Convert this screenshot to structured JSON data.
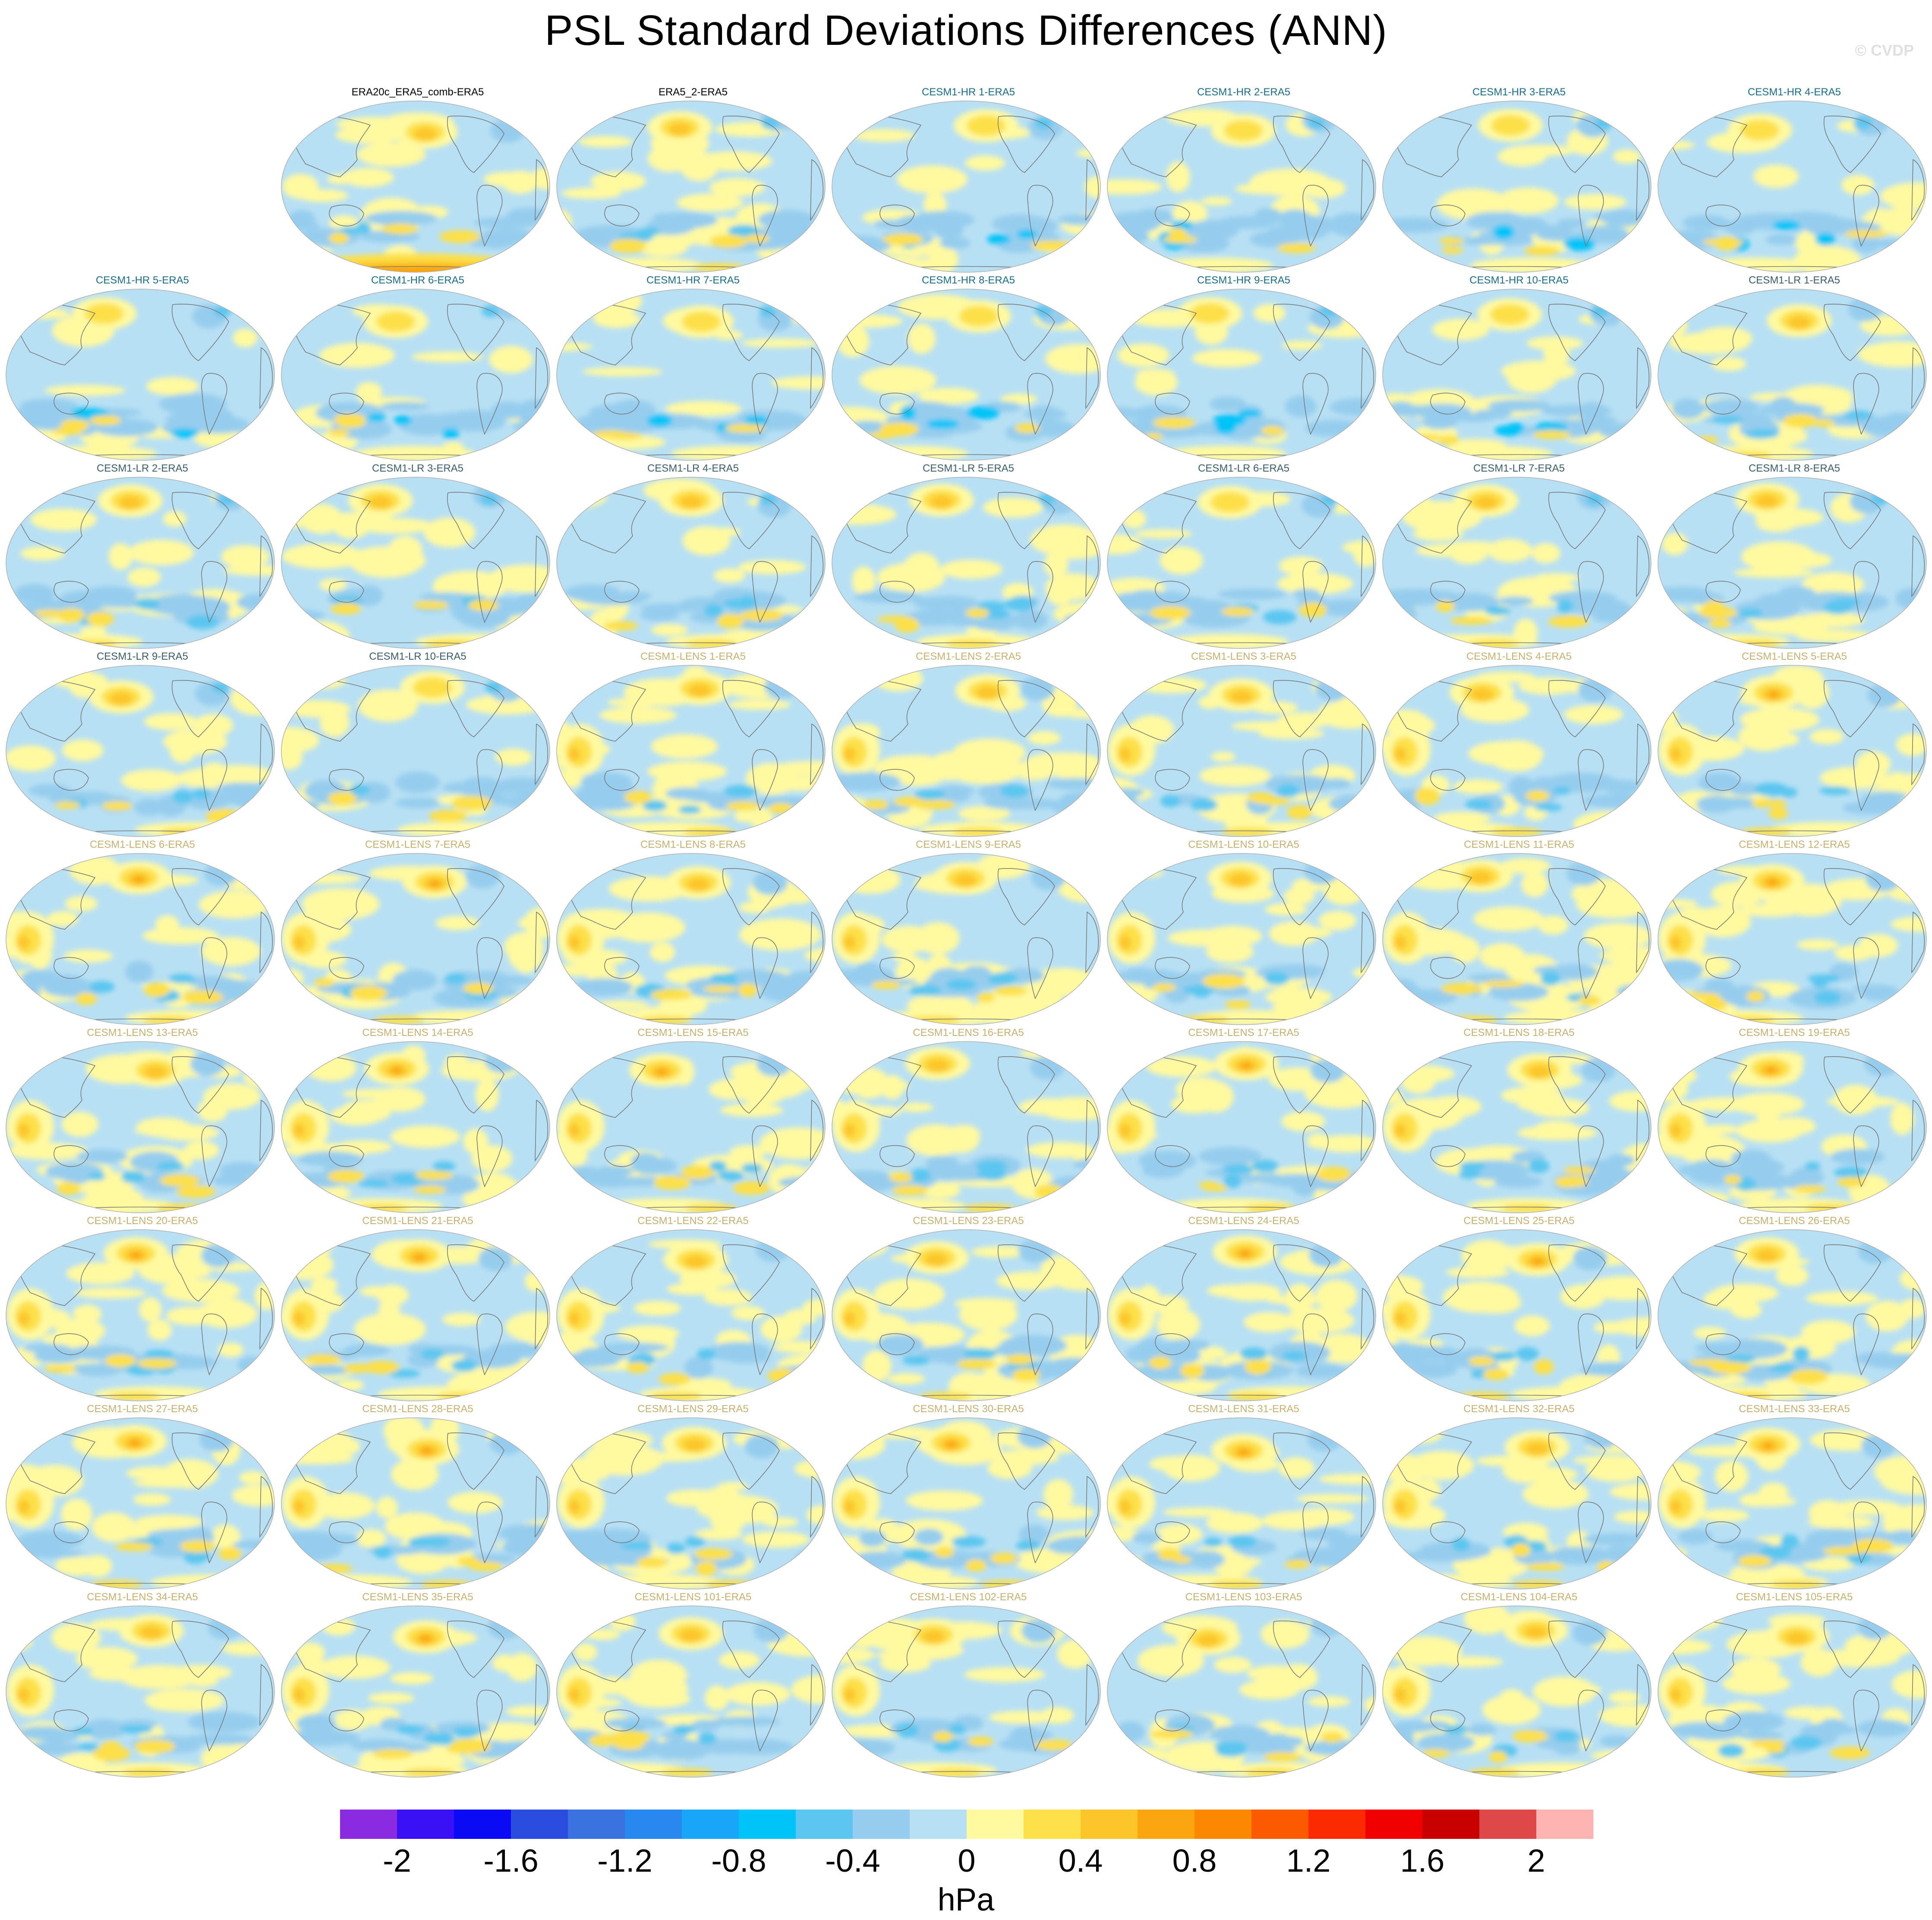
{
  "title": "PSL Standard Deviations Differences (ANN)",
  "watermark": "© CVDP",
  "colors": {
    "era_title": "#000000",
    "hr_title": "#1a6d8a",
    "lr_title": "#3a5d6a",
    "lens_title": "#c8b070",
    "map_border": "#b0b0b0",
    "coast": "#7a7a7a"
  },
  "chart_data": {
    "type": "heatmap",
    "title": "PSL Standard Deviations Differences (ANN)",
    "projection": "Robinson, Pacific-centered",
    "colorbar": {
      "unit": "hPa",
      "tick_labels": [
        "-2",
        "-1.6",
        "-1.2",
        "-0.8",
        "-0.4",
        "0",
        "0.4",
        "0.8",
        "1.2",
        "1.6",
        "2"
      ],
      "levels": [
        -2.2,
        -2,
        -1.8,
        -1.6,
        -1.4,
        -1.2,
        -1,
        -0.8,
        -0.6,
        -0.4,
        -0.2,
        0,
        0.2,
        0.4,
        0.6,
        0.8,
        1,
        1.2,
        1.4,
        1.6,
        1.8,
        2,
        2.2
      ],
      "colors": [
        "#8a2be2",
        "#3a10f5",
        "#0a0af5",
        "#2a4de0",
        "#3a72e0",
        "#2888f0",
        "#1aa6f8",
        "#00c4f8",
        "#5cc6f0",
        "#96cdee",
        "#b8e0f4",
        "#fff9a0",
        "#fde04a",
        "#fcc62a",
        "#fba510",
        "#fb8800",
        "#fb5a00",
        "#fb2a00",
        "#f00000",
        "#c80000",
        "#de4848",
        "#ffb4b4"
      ]
    },
    "panels": [
      {
        "label": "ERA20c_ERA5_comb-ERA5",
        "group": "era",
        "warmth": 0.35
      },
      {
        "label": "ERA5_2-ERA5",
        "group": "era",
        "warmth": 0.25
      },
      {
        "label": "CESM1-HR 1-ERA5",
        "group": "hr",
        "warmth": 0.1
      },
      {
        "label": "CESM1-HR 2-ERA5",
        "group": "hr",
        "warmth": 0.05
      },
      {
        "label": "CESM1-HR 3-ERA5",
        "group": "hr",
        "warmth": 0.15
      },
      {
        "label": "CESM1-HR 4-ERA5",
        "group": "hr",
        "warmth": 0.12
      },
      {
        "label": "CESM1-HR 5-ERA5",
        "group": "hr",
        "warmth": 0.1
      },
      {
        "label": "CESM1-HR 6-ERA5",
        "group": "hr",
        "warmth": 0.1
      },
      {
        "label": "CESM1-HR 7-ERA5",
        "group": "hr",
        "warmth": 0.12
      },
      {
        "label": "CESM1-HR 8-ERA5",
        "group": "hr",
        "warmth": 0.08
      },
      {
        "label": "CESM1-HR 9-ERA5",
        "group": "hr",
        "warmth": 0.1
      },
      {
        "label": "CESM1-HR 10-ERA5",
        "group": "hr",
        "warmth": 0.12
      },
      {
        "label": "CESM1-LR 1-ERA5",
        "group": "lr",
        "warmth": 0.3
      },
      {
        "label": "CESM1-LR 2-ERA5",
        "group": "lr",
        "warmth": 0.25
      },
      {
        "label": "CESM1-LR 3-ERA5",
        "group": "lr",
        "warmth": 0.25
      },
      {
        "label": "CESM1-LR 4-ERA5",
        "group": "lr",
        "warmth": 0.28
      },
      {
        "label": "CESM1-LR 5-ERA5",
        "group": "lr",
        "warmth": 0.25
      },
      {
        "label": "CESM1-LR 6-ERA5",
        "group": "lr",
        "warmth": 0.2
      },
      {
        "label": "CESM1-LR 7-ERA5",
        "group": "lr",
        "warmth": 0.22
      },
      {
        "label": "CESM1-LR 8-ERA5",
        "group": "lr",
        "warmth": 0.22
      },
      {
        "label": "CESM1-LR 9-ERA5",
        "group": "lr",
        "warmth": 0.22
      },
      {
        "label": "CESM1-LR 10-ERA5",
        "group": "lr",
        "warmth": 0.2
      },
      {
        "label": "CESM1-LENS 1-ERA5",
        "group": "lens",
        "warmth": 0.5
      },
      {
        "label": "CESM1-LENS 2-ERA5",
        "group": "lens",
        "warmth": 0.45
      },
      {
        "label": "CESM1-LENS 3-ERA5",
        "group": "lens",
        "warmth": 0.5
      },
      {
        "label": "CESM1-LENS 4-ERA5",
        "group": "lens",
        "warmth": 0.5
      },
      {
        "label": "CESM1-LENS 5-ERA5",
        "group": "lens",
        "warmth": 0.55
      },
      {
        "label": "CESM1-LENS 6-ERA5",
        "group": "lens",
        "warmth": 0.55
      },
      {
        "label": "CESM1-LENS 7-ERA5",
        "group": "lens",
        "warmth": 0.6
      },
      {
        "label": "CESM1-LENS 8-ERA5",
        "group": "lens",
        "warmth": 0.5
      },
      {
        "label": "CESM1-LENS 9-ERA5",
        "group": "lens",
        "warmth": 0.45
      },
      {
        "label": "CESM1-LENS 10-ERA5",
        "group": "lens",
        "warmth": 0.5
      },
      {
        "label": "CESM1-LENS 11-ERA5",
        "group": "lens",
        "warmth": 0.5
      },
      {
        "label": "CESM1-LENS 12-ERA5",
        "group": "lens",
        "warmth": 0.55
      },
      {
        "label": "CESM1-LENS 13-ERA5",
        "group": "lens",
        "warmth": 0.5
      },
      {
        "label": "CESM1-LENS 14-ERA5",
        "group": "lens",
        "warmth": 0.6
      },
      {
        "label": "CESM1-LENS 15-ERA5",
        "group": "lens",
        "warmth": 0.55
      },
      {
        "label": "CESM1-LENS 16-ERA5",
        "group": "lens",
        "warmth": 0.5
      },
      {
        "label": "CESM1-LENS 17-ERA5",
        "group": "lens",
        "warmth": 0.55
      },
      {
        "label": "CESM1-LENS 18-ERA5",
        "group": "lens",
        "warmth": 0.5
      },
      {
        "label": "CESM1-LENS 19-ERA5",
        "group": "lens",
        "warmth": 0.55
      },
      {
        "label": "CESM1-LENS 20-ERA5",
        "group": "lens",
        "warmth": 0.55
      },
      {
        "label": "CESM1-LENS 21-ERA5",
        "group": "lens",
        "warmth": 0.6
      },
      {
        "label": "CESM1-LENS 22-ERA5",
        "group": "lens",
        "warmth": 0.5
      },
      {
        "label": "CESM1-LENS 23-ERA5",
        "group": "lens",
        "warmth": 0.5
      },
      {
        "label": "CESM1-LENS 24-ERA5",
        "group": "lens",
        "warmth": 0.55
      },
      {
        "label": "CESM1-LENS 25-ERA5",
        "group": "lens",
        "warmth": 0.55
      },
      {
        "label": "CESM1-LENS 26-ERA5",
        "group": "lens",
        "warmth": 0.4
      },
      {
        "label": "CESM1-LENS 27-ERA5",
        "group": "lens",
        "warmth": 0.55
      },
      {
        "label": "CESM1-LENS 28-ERA5",
        "group": "lens",
        "warmth": 0.55
      },
      {
        "label": "CESM1-LENS 29-ERA5",
        "group": "lens",
        "warmth": 0.5
      },
      {
        "label": "CESM1-LENS 30-ERA5",
        "group": "lens",
        "warmth": 0.55
      },
      {
        "label": "CESM1-LENS 31-ERA5",
        "group": "lens",
        "warmth": 0.55
      },
      {
        "label": "CESM1-LENS 32-ERA5",
        "group": "lens",
        "warmth": 0.5
      },
      {
        "label": "CESM1-LENS 33-ERA5",
        "group": "lens",
        "warmth": 0.55
      },
      {
        "label": "CESM1-LENS 34-ERA5",
        "group": "lens",
        "warmth": 0.5
      },
      {
        "label": "CESM1-LENS 35-ERA5",
        "group": "lens",
        "warmth": 0.55
      },
      {
        "label": "CESM1-LENS 101-ERA5",
        "group": "lens",
        "warmth": 0.45
      },
      {
        "label": "CESM1-LENS 102-ERA5",
        "group": "lens",
        "warmth": 0.5
      },
      {
        "label": "CESM1-LENS 103-ERA5",
        "group": "lens",
        "warmth": 0.4
      },
      {
        "label": "CESM1-LENS 104-ERA5",
        "group": "lens",
        "warmth": 0.5
      },
      {
        "label": "CESM1-LENS 105-ERA5",
        "group": "lens",
        "warmth": 0.45
      }
    ]
  }
}
